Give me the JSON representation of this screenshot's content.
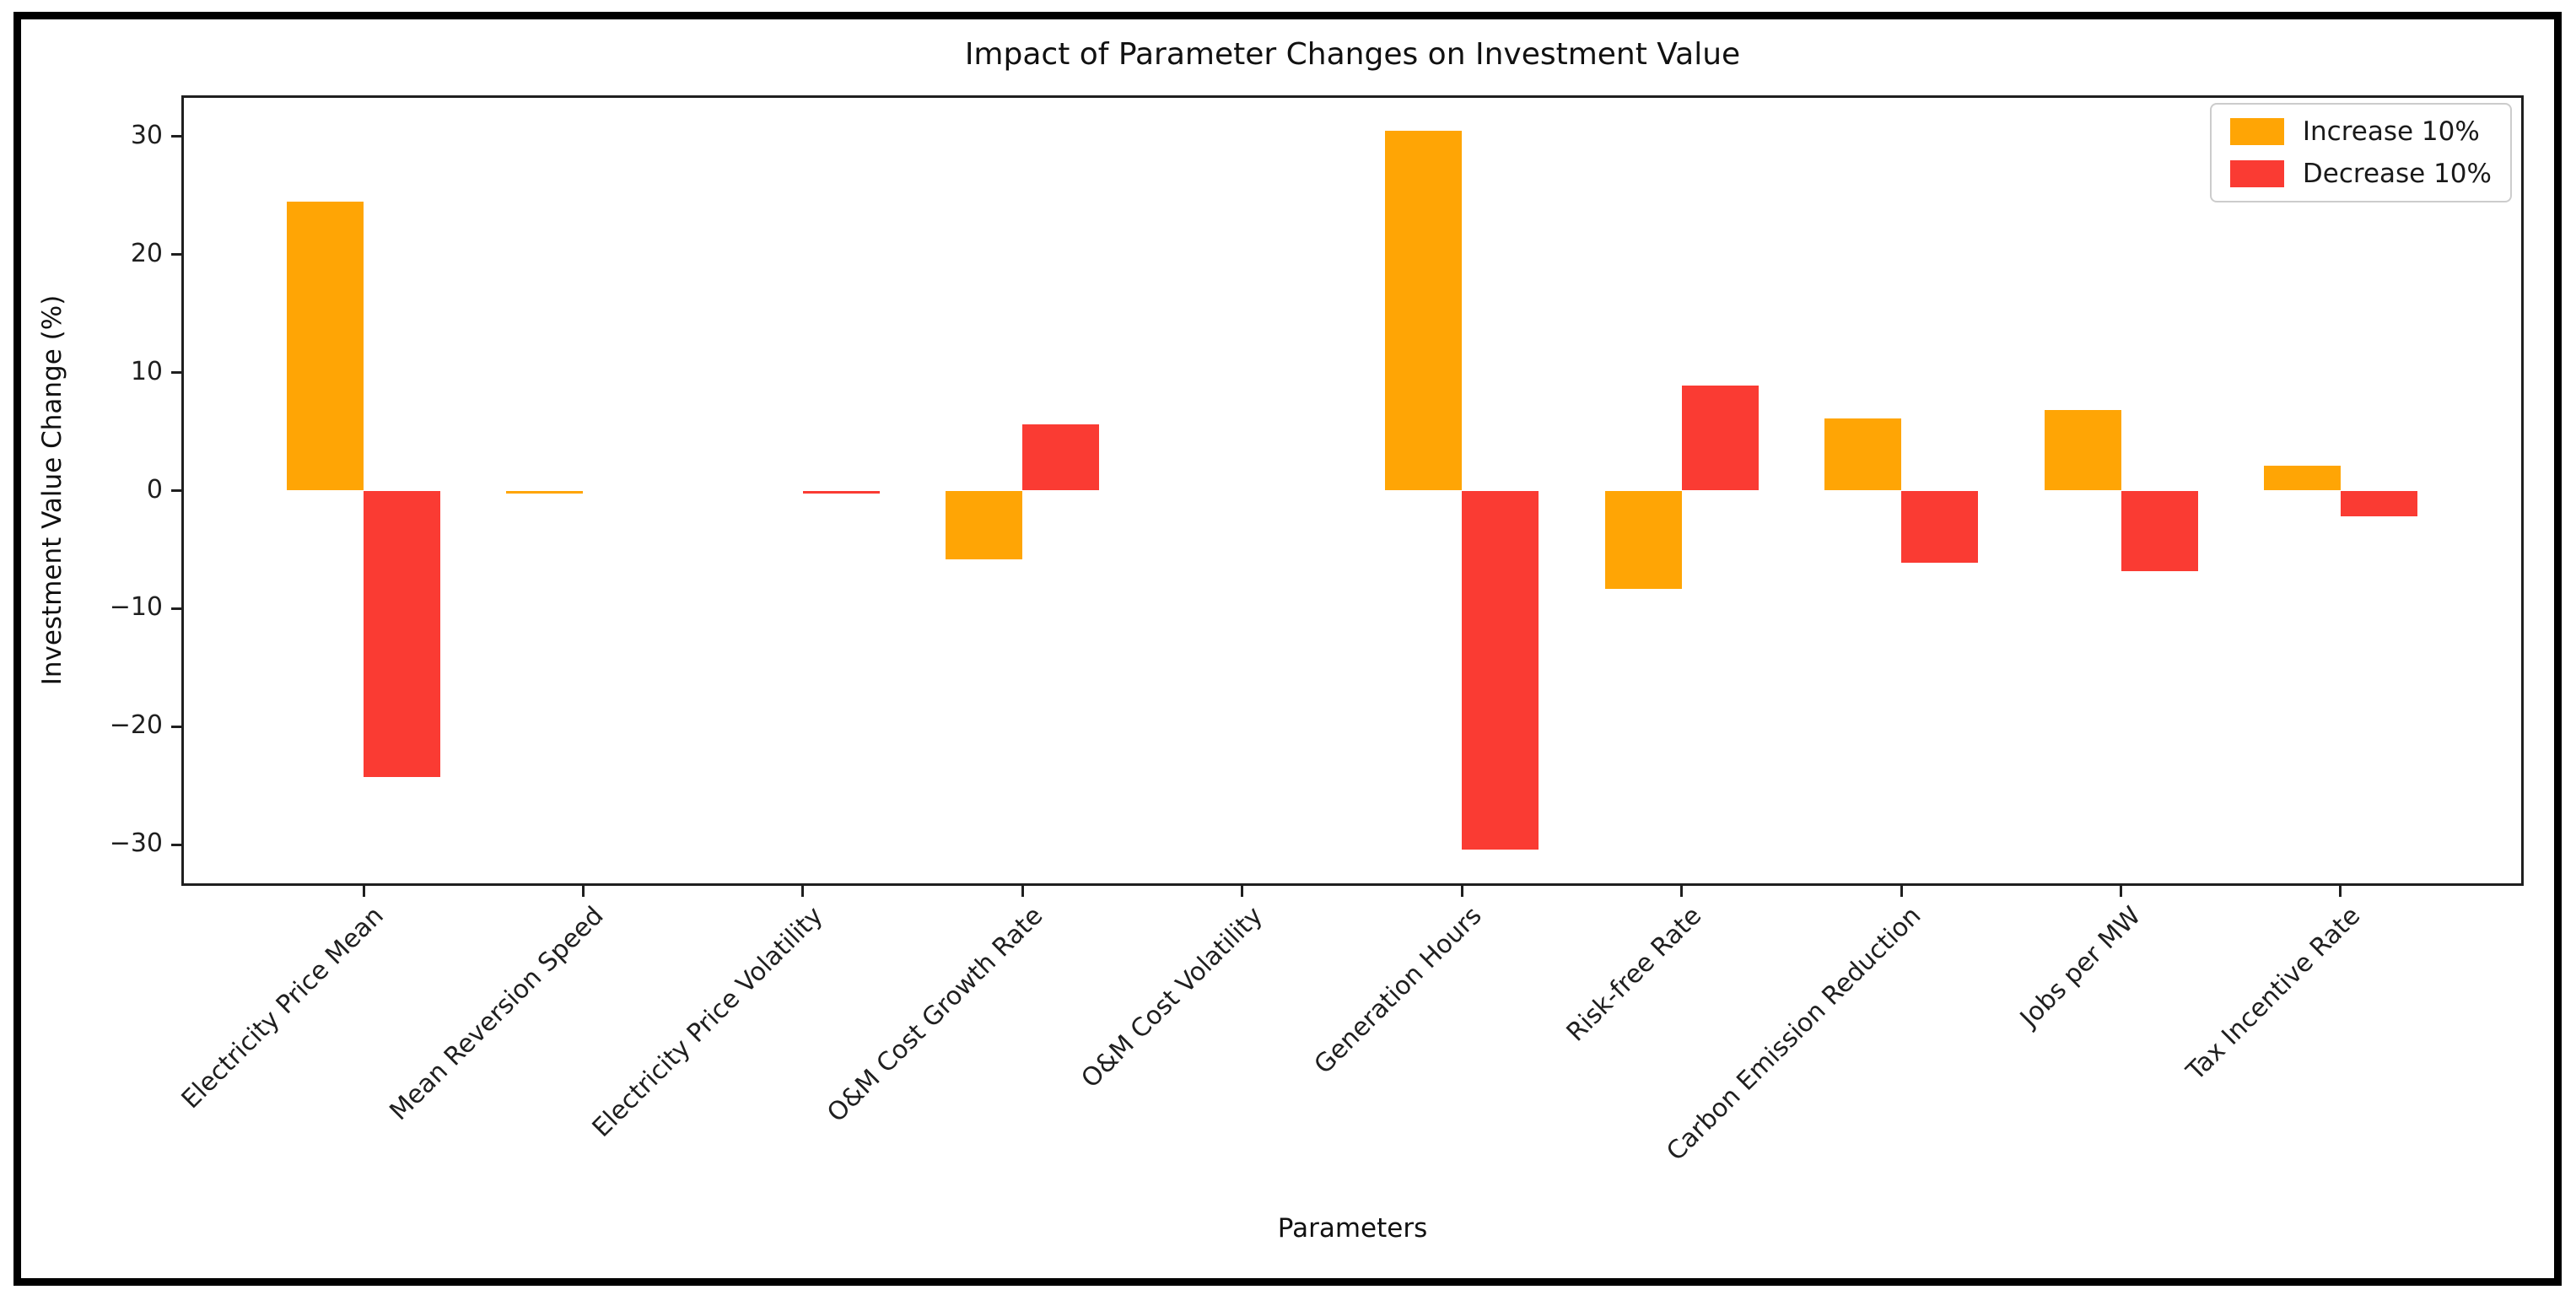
{
  "figure": {
    "title": "Impact of Parameter Changes on Investment Value",
    "xlabel": "Parameters",
    "ylabel": "Investment Value Change (%)"
  },
  "legend": {
    "items": [
      {
        "label": "Increase 10%",
        "color": "#FFA505"
      },
      {
        "label": "Decrease 10%",
        "color": "#FA3B33"
      }
    ]
  },
  "chart_data": {
    "type": "bar",
    "title": "Impact of Parameter Changes on Investment Value",
    "xlabel": "Parameters",
    "ylabel": "Investment Value Change (%)",
    "categories": [
      "Electricity Price Mean",
      "Mean Reversion Speed",
      "Electricity Price Volatility",
      "O&M Cost Growth Rate",
      "O&M Cost Volatility",
      "Generation Hours",
      "Risk-free Rate",
      "Carbon Emission Reduction",
      "Jobs per MW",
      "Tax Incentive Rate"
    ],
    "series": [
      {
        "name": "Increase 10%",
        "color": "#FFA505",
        "values": [
          24.5,
          -0.2,
          0,
          -5.8,
          0,
          30.5,
          -8.3,
          6.1,
          6.8,
          2.1
        ]
      },
      {
        "name": "Decrease 10%",
        "color": "#FA3B33",
        "values": [
          -24.3,
          0,
          -0.2,
          5.6,
          0,
          -30.4,
          8.9,
          -6.1,
          -6.8,
          -2.2
        ]
      }
    ],
    "ylim": [
      -33.5,
      33.5
    ],
    "yticks": [
      30,
      20,
      10,
      0,
      -10,
      -20,
      -30
    ],
    "grid": false,
    "legend_position": "upper right"
  }
}
